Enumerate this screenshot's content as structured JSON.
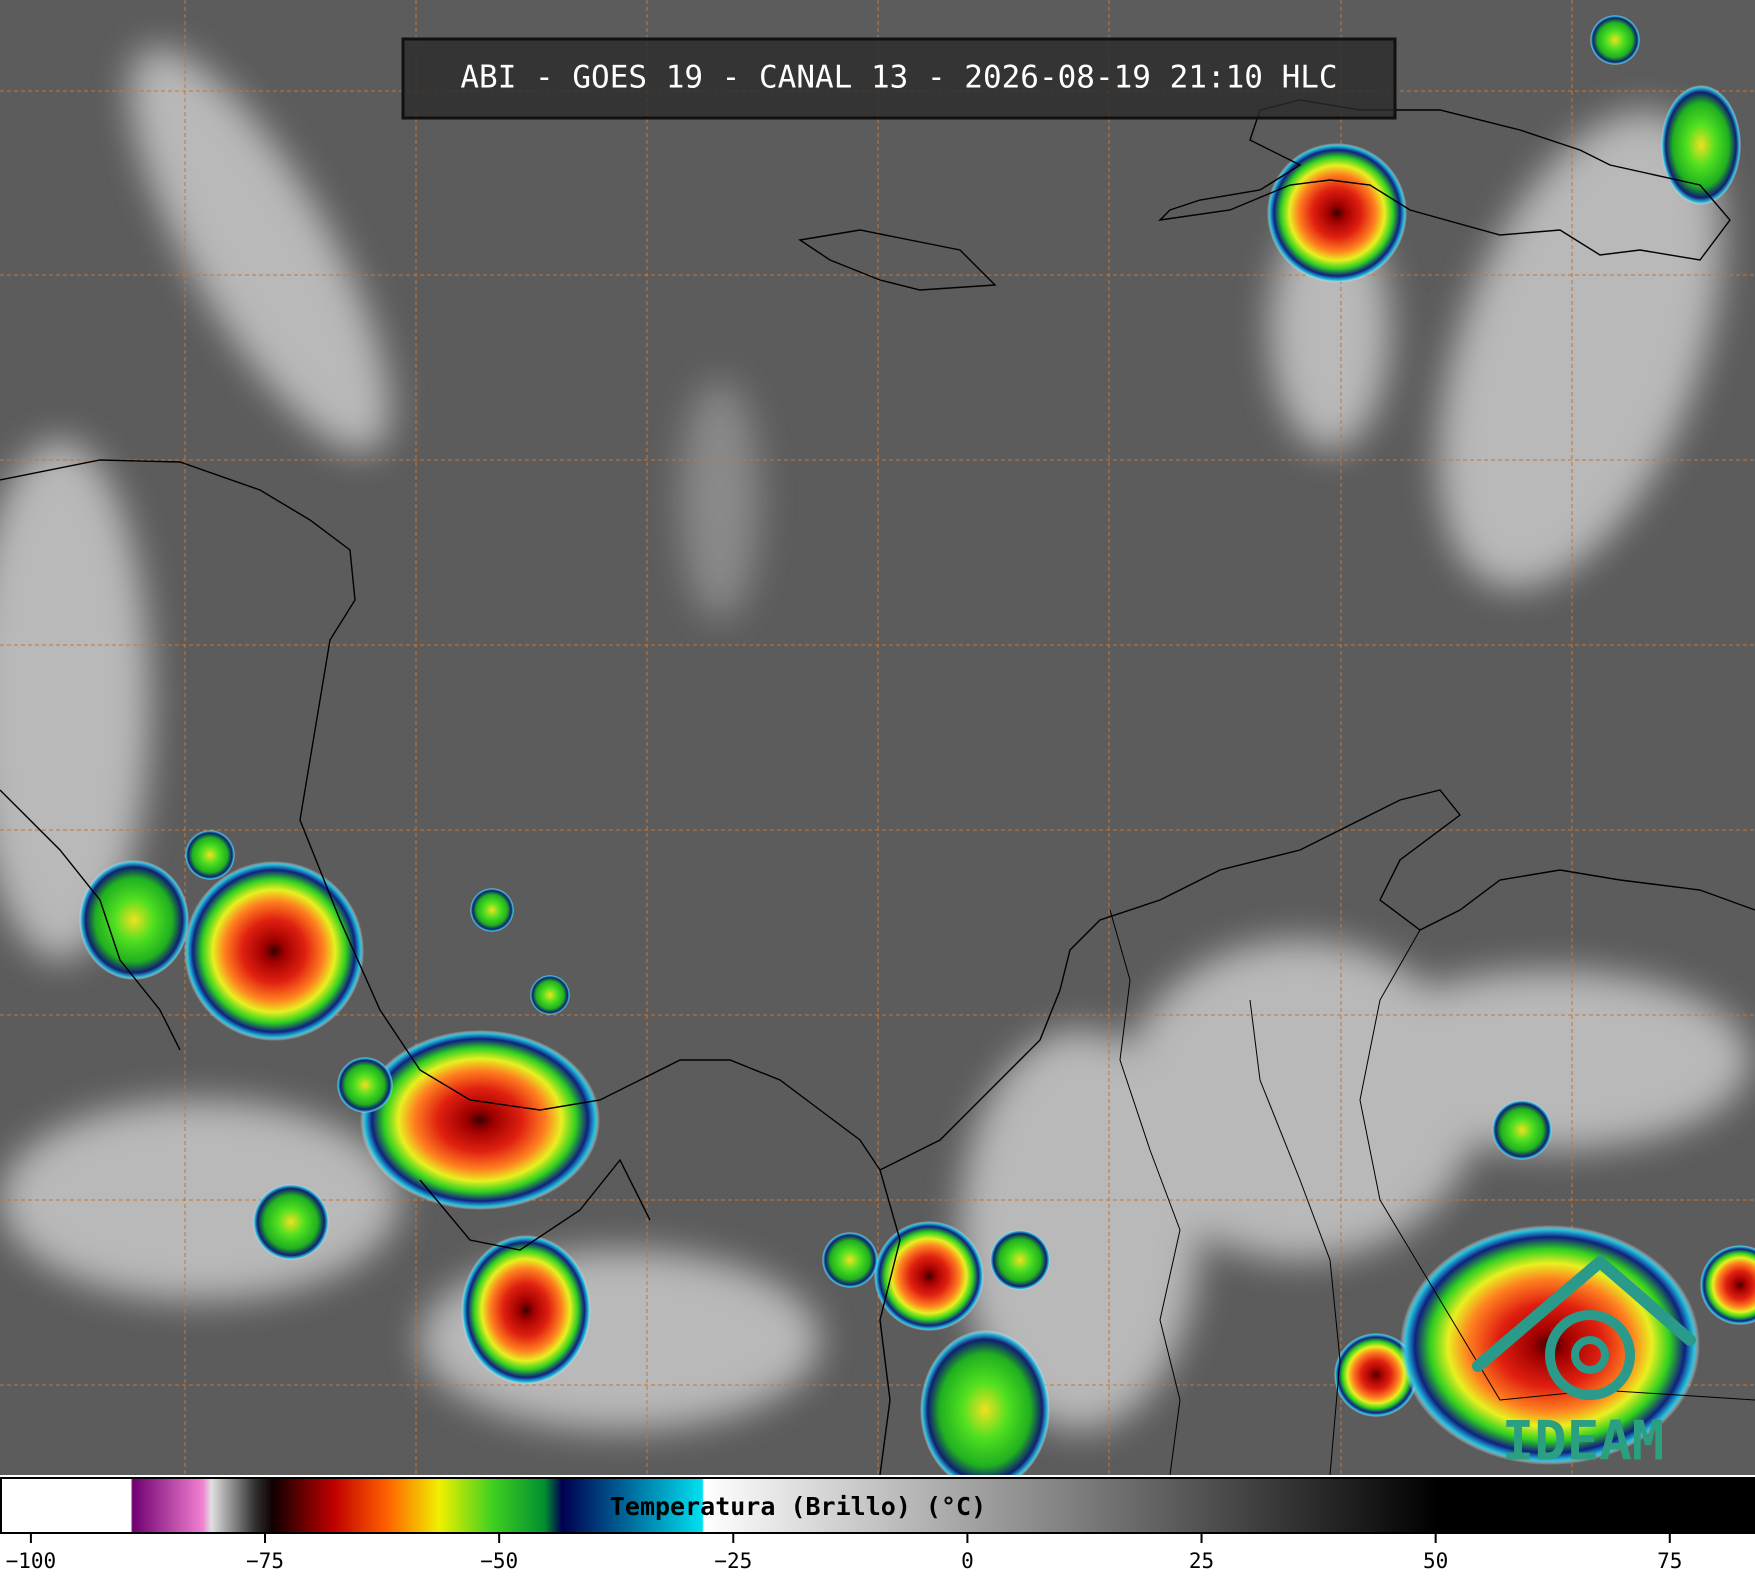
{
  "header": {
    "title": "ABI - GOES 19 - CANAL 13 - 2026-08-19 21:10 HLC"
  },
  "colorbar": {
    "label": "Temperatura (Brillo) (°C)",
    "xlim": [
      -103.3,
      84.1
    ],
    "xticks": [
      {
        "value": -100,
        "label": "−100"
      },
      {
        "value": -75,
        "label": "−75"
      },
      {
        "value": -50,
        "label": "−50"
      },
      {
        "value": -25,
        "label": "−25"
      },
      0,
      25,
      50,
      75
    ]
  },
  "logo": {
    "text": "IDEAM"
  }
}
